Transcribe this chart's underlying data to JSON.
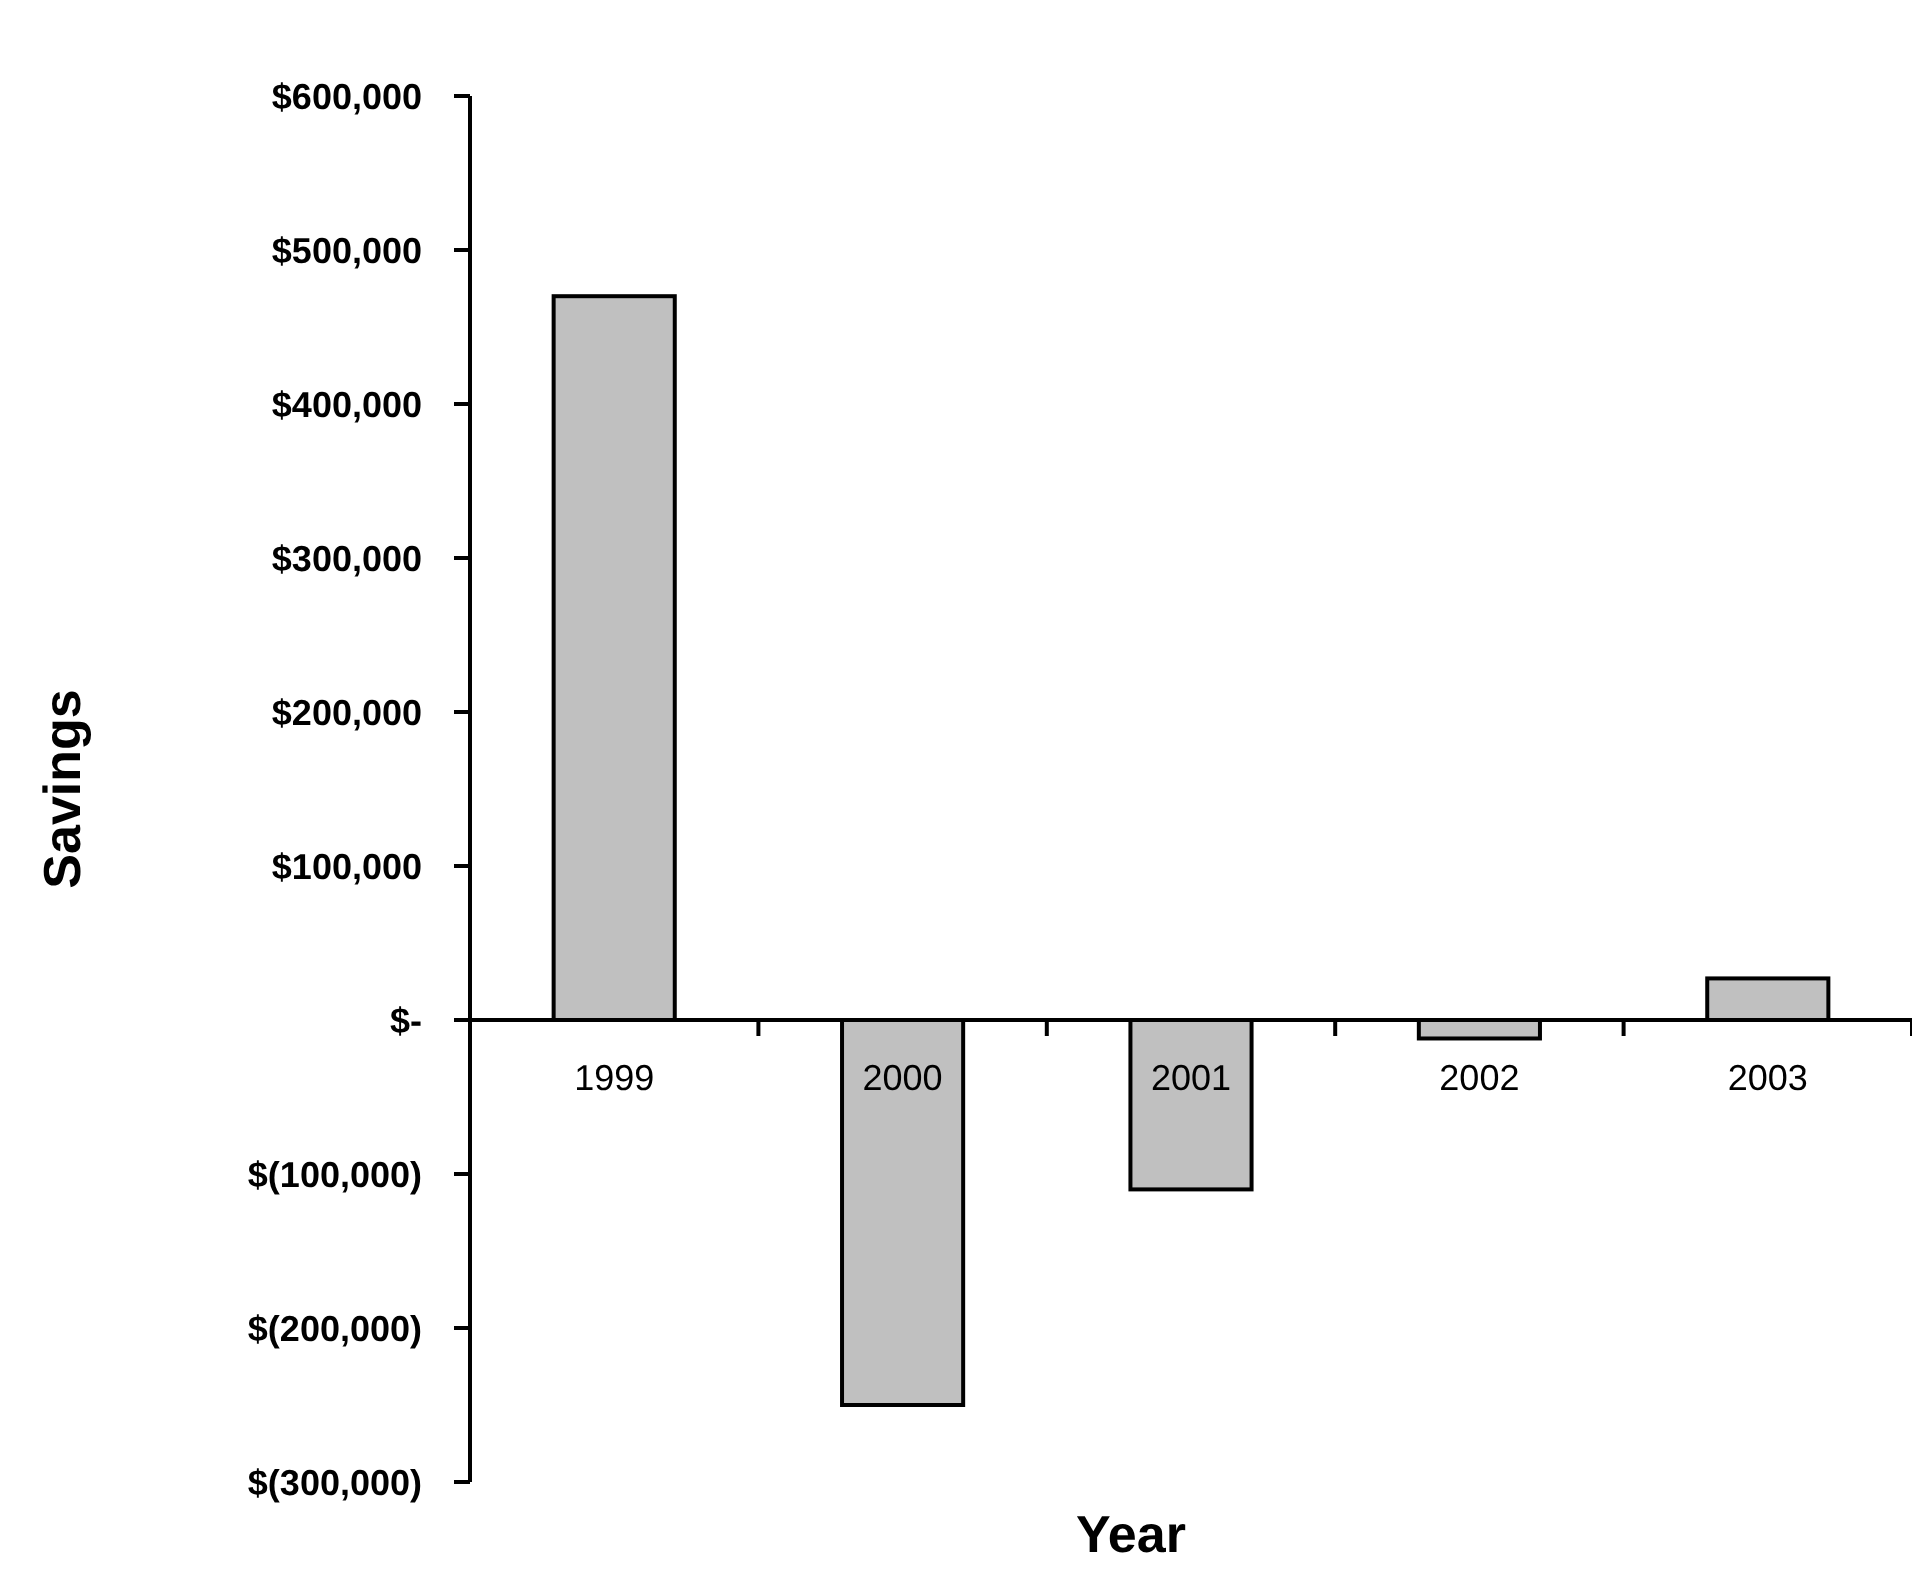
{
  "chart_data": {
    "type": "bar",
    "xlabel": "Year",
    "ylabel": "Savings",
    "categories": [
      "1999",
      "2000",
      "2001",
      "2002",
      "2003"
    ],
    "series": [
      {
        "color": "#c0c0c0",
        "values": [
          470000,
          -250000,
          -110000,
          -12000,
          27000
        ]
      }
    ],
    "ylim": [
      -300000,
      600000
    ],
    "yticks": [
      {
        "value": -300000,
        "label": "$(300,000)"
      },
      {
        "value": -200000,
        "label": "$(200,000)"
      },
      {
        "value": -100000,
        "label": "$(100,000)"
      },
      {
        "value": 0,
        "label": "$-"
      },
      {
        "value": 100000,
        "label": "$100,000"
      },
      {
        "value": 200000,
        "label": "$200,000"
      },
      {
        "value": 300000,
        "label": "$300,000"
      },
      {
        "value": 400000,
        "label": "$400,000"
      },
      {
        "value": 500000,
        "label": "$500,000"
      },
      {
        "value": 600000,
        "label": "$600,000"
      }
    ],
    "grid": false
  }
}
